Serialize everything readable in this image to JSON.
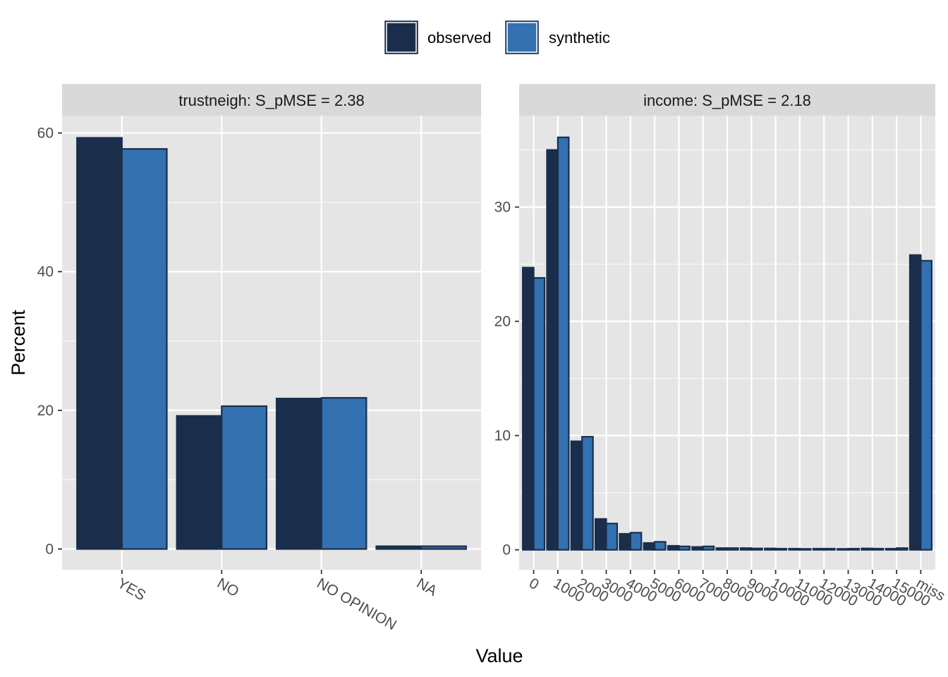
{
  "legend": {
    "items": [
      {
        "label": "observed",
        "color": "#1a2e4c"
      },
      {
        "label": "synthetic",
        "color": "#3371b1"
      }
    ]
  },
  "axes": {
    "xlabel": "Value",
    "ylabel": "Percent"
  },
  "colors": {
    "panel_bg": "#e5e5e5",
    "strip_bg": "#d9d9d9",
    "grid": "#ffffff",
    "bar_outline": "#1a2e4c"
  },
  "chart_data": [
    {
      "type": "bar",
      "title": "trustneigh: S_pMSE = 2.38",
      "categories": [
        "YES",
        "NO",
        "NO OPINION",
        "NA"
      ],
      "series": [
        {
          "name": "observed",
          "values": [
            59.3,
            19.2,
            21.7,
            0.4
          ]
        },
        {
          "name": "synthetic",
          "values": [
            57.7,
            20.6,
            21.8,
            0.4
          ]
        }
      ],
      "ylim": [
        -3,
        62.5
      ],
      "yticks": [
        0,
        20,
        40,
        60
      ],
      "tick_angle": 30
    },
    {
      "type": "bar",
      "title": "income: S_pMSE = 2.18",
      "categories": [
        "0",
        "1000",
        "2000",
        "3000",
        "4000",
        "5000",
        "6000",
        "7000",
        "8000",
        "9000",
        "10000",
        "11000",
        "12000",
        "13000",
        "14000",
        "15000",
        "miss"
      ],
      "series": [
        {
          "name": "observed",
          "values": [
            24.7,
            35.0,
            9.5,
            2.7,
            1.4,
            0.6,
            0.35,
            0.25,
            0.15,
            0.15,
            0.12,
            0.1,
            0.1,
            0.08,
            0.12,
            0.1,
            25.8
          ]
        },
        {
          "name": "synthetic",
          "values": [
            23.8,
            36.1,
            9.9,
            2.3,
            1.5,
            0.7,
            0.3,
            0.3,
            0.15,
            0.12,
            0.1,
            0.08,
            0.1,
            0.1,
            0.1,
            0.15,
            25.3
          ]
        }
      ],
      "ylim": [
        -1.75,
        38.0
      ],
      "yticks": [
        0,
        10,
        20,
        30
      ],
      "tick_angle": 30
    }
  ]
}
